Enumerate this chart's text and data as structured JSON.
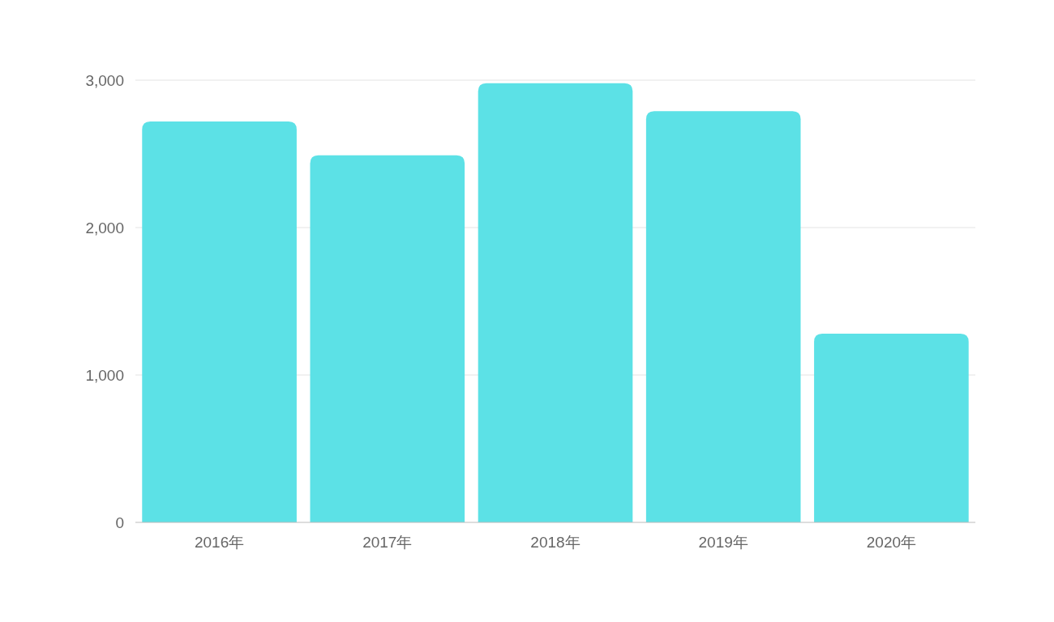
{
  "chart_data": {
    "type": "bar",
    "categories": [
      "2016年",
      "2017年",
      "2018年",
      "2019年",
      "2020年"
    ],
    "values": [
      2720,
      2490,
      2980,
      2790,
      1280
    ],
    "color": "#5ce1e6",
    "ylim": [
      0,
      3000
    ],
    "yticks": [
      {
        "value": 0,
        "label": "0"
      },
      {
        "value": 1000,
        "label": "1,000"
      },
      {
        "value": 2000,
        "label": "2,000"
      },
      {
        "value": 3000,
        "label": "3,000"
      }
    ],
    "grid": "y"
  }
}
